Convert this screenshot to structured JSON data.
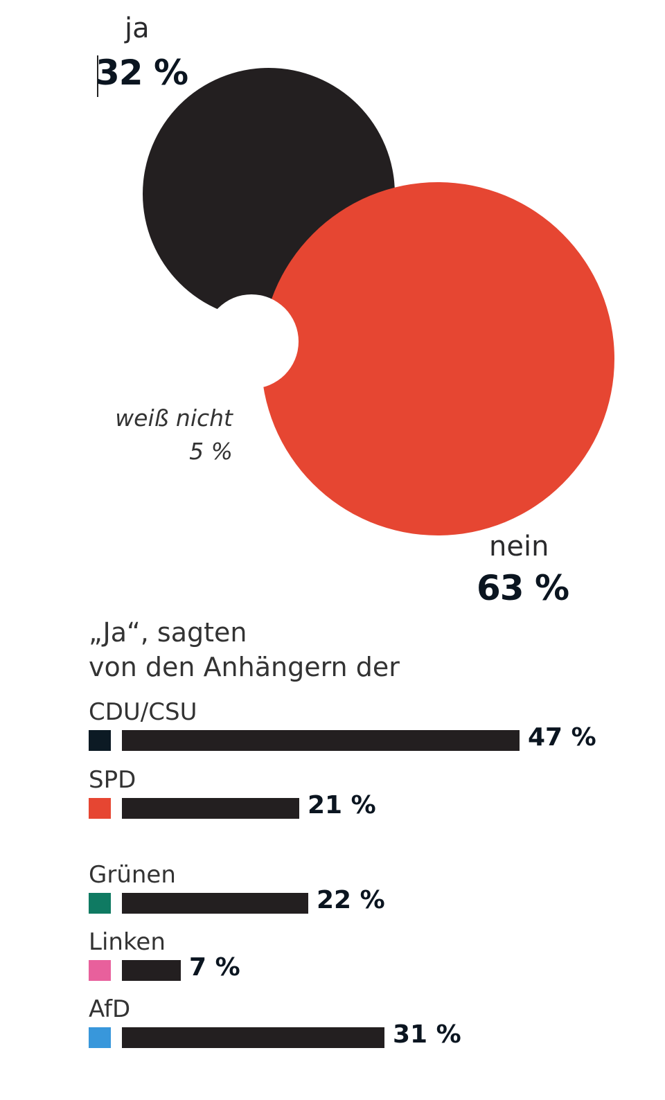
{
  "bubbles": [
    {
      "key": "ja",
      "label": "ja",
      "pct_text": "32 %",
      "value": 32,
      "color": "#231f20"
    },
    {
      "key": "nein",
      "label": "nein",
      "pct_text": "63 %",
      "value": 63,
      "color": "#e64632"
    },
    {
      "key": "weiss_nicht",
      "label": "weiß nicht",
      "pct_text": "5 %",
      "value": 5,
      "color": "#ffffff"
    }
  ],
  "subtitle_line1": "„Ja“, sagten",
  "subtitle_line2": "von den Anhängern der",
  "chart_data": {
    "type": "bar",
    "categories": [
      "CDU/CSU",
      "SPD",
      "Grünen",
      "Linken",
      "AfD"
    ],
    "values": [
      47,
      21,
      22,
      7,
      31
    ],
    "value_labels": [
      "47 %",
      "21 %",
      "22 %",
      "7 %",
      "31 %"
    ],
    "swatch_colors": [
      "#0c1a24",
      "#e64632",
      "#0f7a62",
      "#e8609c",
      "#3897db"
    ],
    "bar_color": "#231f20",
    "orientation": "horizontal"
  }
}
